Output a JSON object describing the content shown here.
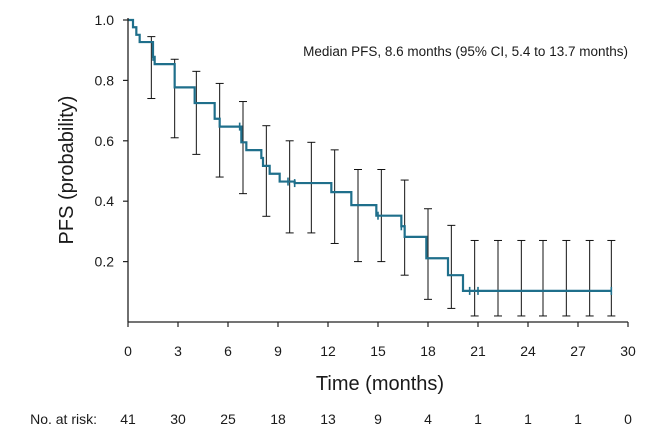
{
  "chart_data": {
    "type": "line",
    "subtype": "kaplan-meier step curve with confidence-interval error bars",
    "xlabel": "Time (months)",
    "ylabel": "PFS (probability)",
    "xlim": [
      0,
      30
    ],
    "ylim": [
      0,
      1.0
    ],
    "xticks": [
      "0",
      "3",
      "6",
      "9",
      "12",
      "15",
      "18",
      "21",
      "24",
      "27",
      "30"
    ],
    "yticks": [
      "0.2",
      "0.4",
      "0.6",
      "0.8",
      "1.0"
    ],
    "grid": false,
    "annotation": "Median PFS, 8.6 months (95% CI, 5.4 to 13.7 months)",
    "line_color": "#1f6f8b",
    "series": [
      {
        "x": [
          0,
          0.3,
          0.5,
          0.7,
          1.0,
          1.5,
          1.6,
          2.6,
          2.8,
          4.0,
          5.2,
          5.5,
          6.4,
          6.8,
          7.1,
          8.0,
          8.1,
          8.5,
          9.1,
          9.6,
          10.0,
          12.2,
          13.4,
          14.9,
          16.4,
          16.6,
          17.9,
          19.2,
          20.1,
          20.5,
          21.0,
          29.0
        ],
        "y": [
          1.0,
          0.976,
          0.951,
          0.927,
          0.927,
          0.878,
          0.854,
          0.854,
          0.777,
          0.725,
          0.673,
          0.647,
          0.647,
          0.595,
          0.569,
          0.543,
          0.517,
          0.491,
          0.465,
          0.465,
          0.46,
          0.43,
          0.387,
          0.352,
          0.317,
          0.282,
          0.211,
          0.155,
          0.103,
          0.103,
          0.103,
          0.103
        ]
      }
    ],
    "censor_marks": [
      {
        "x": 1.5,
        "y": 0.878
      },
      {
        "x": 6.7,
        "y": 0.647
      },
      {
        "x": 9.6,
        "y": 0.465
      },
      {
        "x": 10.0,
        "y": 0.46
      },
      {
        "x": 15.0,
        "y": 0.352
      },
      {
        "x": 16.4,
        "y": 0.317
      },
      {
        "x": 20.5,
        "y": 0.103
      },
      {
        "x": 21.0,
        "y": 0.103
      },
      {
        "x": 29.0,
        "y": 0.103
      }
    ],
    "error_bars": [
      {
        "x": 1.4,
        "low": 0.74,
        "high": 0.945
      },
      {
        "x": 2.8,
        "low": 0.61,
        "high": 0.87
      },
      {
        "x": 4.1,
        "low": 0.555,
        "high": 0.83
      },
      {
        "x": 5.5,
        "low": 0.48,
        "high": 0.79
      },
      {
        "x": 6.9,
        "low": 0.425,
        "high": 0.73
      },
      {
        "x": 8.3,
        "low": 0.35,
        "high": 0.65
      },
      {
        "x": 9.7,
        "low": 0.295,
        "high": 0.6
      },
      {
        "x": 11.0,
        "low": 0.295,
        "high": 0.595
      },
      {
        "x": 12.4,
        "low": 0.26,
        "high": 0.57
      },
      {
        "x": 13.8,
        "low": 0.2,
        "high": 0.505
      },
      {
        "x": 15.2,
        "low": 0.2,
        "high": 0.505
      },
      {
        "x": 16.6,
        "low": 0.155,
        "high": 0.47
      },
      {
        "x": 18.0,
        "low": 0.075,
        "high": 0.375
      },
      {
        "x": 19.4,
        "low": 0.045,
        "high": 0.32
      },
      {
        "x": 20.8,
        "low": 0.02,
        "high": 0.27
      },
      {
        "x": 22.2,
        "low": 0.02,
        "high": 0.27
      },
      {
        "x": 23.6,
        "low": 0.02,
        "high": 0.27
      },
      {
        "x": 24.9,
        "low": 0.02,
        "high": 0.27
      },
      {
        "x": 26.3,
        "low": 0.02,
        "high": 0.27
      },
      {
        "x": 27.7,
        "low": 0.02,
        "high": 0.27
      },
      {
        "x": 29.0,
        "low": 0.02,
        "high": 0.27
      }
    ],
    "risk_table": {
      "label": "No. at risk:",
      "values": [
        "41",
        "30",
        "25",
        "18",
        "13",
        "9",
        "4",
        "1",
        "1",
        "1",
        "0"
      ]
    }
  }
}
